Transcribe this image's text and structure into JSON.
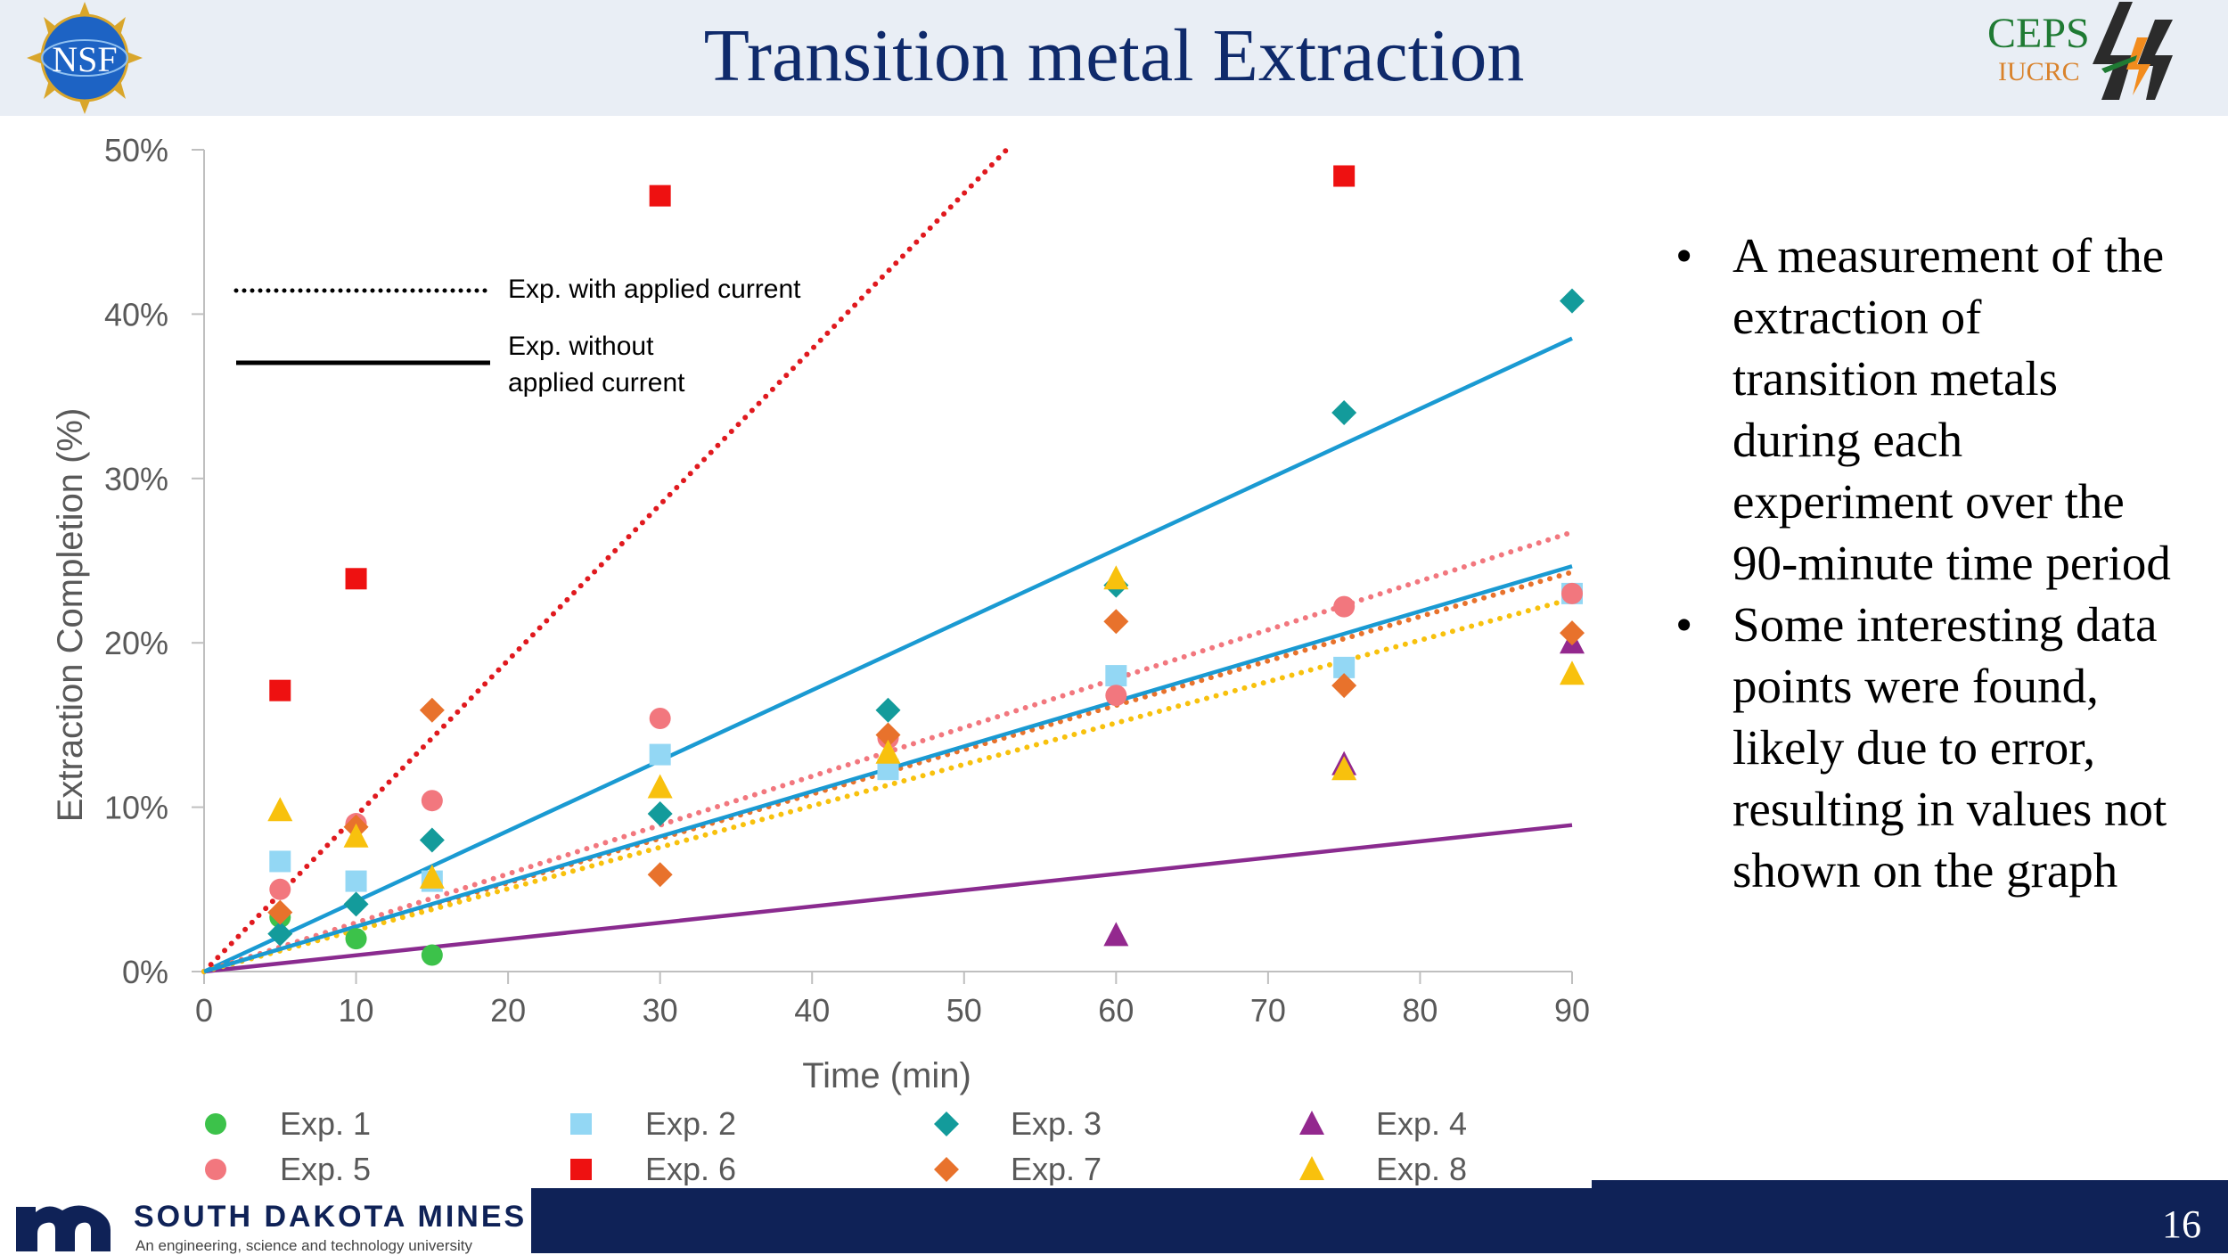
{
  "slide": {
    "title": "Transition metal Extraction",
    "page_number": "16"
  },
  "logos": {
    "nsf": "NSF",
    "ceps_top": "CEPS",
    "ceps_bottom": "IUCRC",
    "sdm_name": "SOUTH DAKOTA MINES",
    "sdm_tagline": "An engineering, science and technology university"
  },
  "bullets": [
    "A measurement of the extraction of transition metals during each experiment over the 90-minute time period",
    "Some interesting data points were found, likely due to error, resulting in values not shown on the graph"
  ],
  "chart_data": {
    "type": "scatter",
    "xlabel": "Time (min)",
    "ylabel": "Extraction Completion (%)",
    "xlim": [
      0,
      90
    ],
    "ylim": [
      0,
      50
    ],
    "x_ticks": [
      "0",
      "10",
      "20",
      "30",
      "40",
      "50",
      "60",
      "70",
      "80",
      "90"
    ],
    "y_ticks": [
      "0%",
      "10%",
      "20%",
      "30%",
      "40%",
      "50%"
    ],
    "line_legend": [
      {
        "style": "dotted",
        "label": "Exp. with applied current"
      },
      {
        "style": "solid",
        "label_lines": [
          "Exp. without",
          "applied current"
        ]
      }
    ],
    "series": [
      {
        "name": "Exp. 1",
        "color": "#3cc24a",
        "marker": "circle",
        "points": [
          [
            5,
            3.3
          ],
          [
            10,
            2.0
          ],
          [
            15,
            1.0
          ]
        ]
      },
      {
        "name": "Exp. 2",
        "color": "#93d7f4",
        "marker": "square",
        "points": [
          [
            5,
            6.7
          ],
          [
            10,
            5.5
          ],
          [
            15,
            5.5
          ],
          [
            30,
            13.2
          ],
          [
            45,
            12.3
          ],
          [
            60,
            18.0
          ],
          [
            75,
            18.5
          ],
          [
            90,
            23.0
          ]
        ]
      },
      {
        "name": "Exp. 3",
        "color": "#139b9b",
        "marker": "diamond",
        "points": [
          [
            5,
            2.3
          ],
          [
            10,
            4.1
          ],
          [
            15,
            8.0
          ],
          [
            30,
            9.6
          ],
          [
            45,
            15.9
          ],
          [
            60,
            23.5
          ],
          [
            75,
            34.0
          ],
          [
            90,
            40.8
          ]
        ],
        "trend": {
          "slope": 0.428,
          "style": "solid",
          "color": "#1a9ad2"
        }
      },
      {
        "name": "Exp. 4",
        "color": "#93288e",
        "marker": "triangle",
        "points": [
          [
            60,
            2.2
          ],
          [
            75,
            12.6
          ],
          [
            90,
            20.0
          ]
        ],
        "trend": {
          "slope": 0.099,
          "style": "solid",
          "color": "#8a2b8f"
        }
      },
      {
        "name": "Exp. 5",
        "color": "#f2777e",
        "marker": "circle",
        "points": [
          [
            5,
            5.0
          ],
          [
            10,
            9.0
          ],
          [
            15,
            10.4
          ],
          [
            30,
            15.4
          ],
          [
            45,
            14.2
          ],
          [
            60,
            16.8
          ],
          [
            75,
            22.2
          ],
          [
            90,
            23.0
          ]
        ],
        "trend": {
          "slope": 0.297,
          "style": "dotted",
          "color": "#f2777e"
        }
      },
      {
        "name": "Exp. 6",
        "color": "#ee1111",
        "marker": "square",
        "points": [
          [
            5,
            17.1
          ],
          [
            10,
            23.9
          ],
          [
            30,
            47.2
          ],
          [
            75,
            48.4
          ]
        ],
        "trend": {
          "slope": 0.947,
          "style": "dotted",
          "color": "#e0191e"
        }
      },
      {
        "name": "Exp. 7",
        "color": "#e8722c",
        "marker": "diamond",
        "points": [
          [
            5,
            3.6
          ],
          [
            10,
            8.8
          ],
          [
            15,
            15.9
          ],
          [
            30,
            5.9
          ],
          [
            45,
            14.4
          ],
          [
            60,
            21.3
          ],
          [
            75,
            17.4
          ],
          [
            90,
            20.6
          ]
        ],
        "trend": {
          "slope": 0.27,
          "style": "dotted",
          "color": "#e8722c"
        }
      },
      {
        "name": "Exp. 8",
        "color": "#f8c10d",
        "marker": "triangle",
        "points": [
          [
            5,
            9.8
          ],
          [
            10,
            8.2
          ],
          [
            15,
            5.7
          ],
          [
            30,
            11.2
          ],
          [
            45,
            13.3
          ],
          [
            60,
            23.9
          ],
          [
            75,
            12.3
          ],
          [
            90,
            18.1
          ]
        ],
        "trend": {
          "slope": 0.252,
          "style": "dotted",
          "color": "#f8c10d"
        }
      },
      {
        "name": "Exp. 2 fit",
        "legend": false,
        "trend": {
          "slope": 0.274,
          "style": "solid",
          "color": "#1a9ad2"
        }
      }
    ]
  }
}
